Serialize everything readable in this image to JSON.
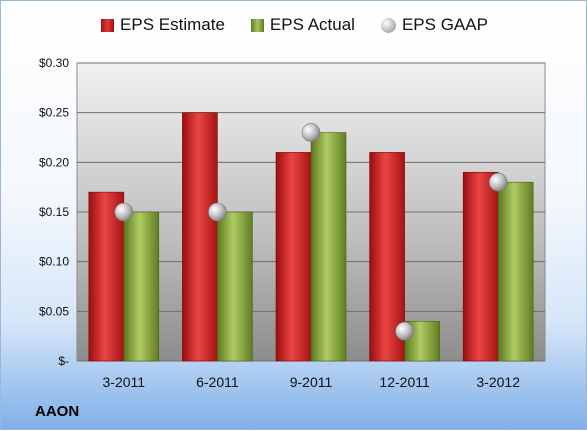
{
  "legend": {
    "estimate": "EPS Estimate",
    "actual": "EPS Actual",
    "gaap": "EPS GAAP"
  },
  "company": "AAON",
  "colors": {
    "estimate": "#d42a2a",
    "actual": "#8fae45",
    "gaap": "#bdbdbd"
  },
  "chart_data": {
    "type": "bar",
    "categories": [
      "3-2011",
      "6-2011",
      "9-2011",
      "12-2011",
      "3-2012"
    ],
    "series": [
      {
        "name": "EPS Estimate",
        "type": "bar",
        "values": [
          0.17,
          0.25,
          0.21,
          0.21,
          0.19
        ]
      },
      {
        "name": "EPS Actual",
        "type": "bar",
        "values": [
          0.15,
          0.15,
          0.23,
          0.04,
          0.18
        ]
      },
      {
        "name": "EPS GAAP",
        "type": "scatter",
        "values": [
          0.15,
          0.15,
          0.23,
          0.03,
          0.18
        ]
      }
    ],
    "ylim": [
      0,
      0.3
    ],
    "yticks": [
      0,
      0.05,
      0.1,
      0.15,
      0.2,
      0.25,
      0.3
    ],
    "ytick_labels": [
      "$-",
      "$0.05",
      "$0.10",
      "$0.15",
      "$0.20",
      "$0.25",
      "$0.30"
    ],
    "grid": true,
    "legend_position": "top"
  }
}
